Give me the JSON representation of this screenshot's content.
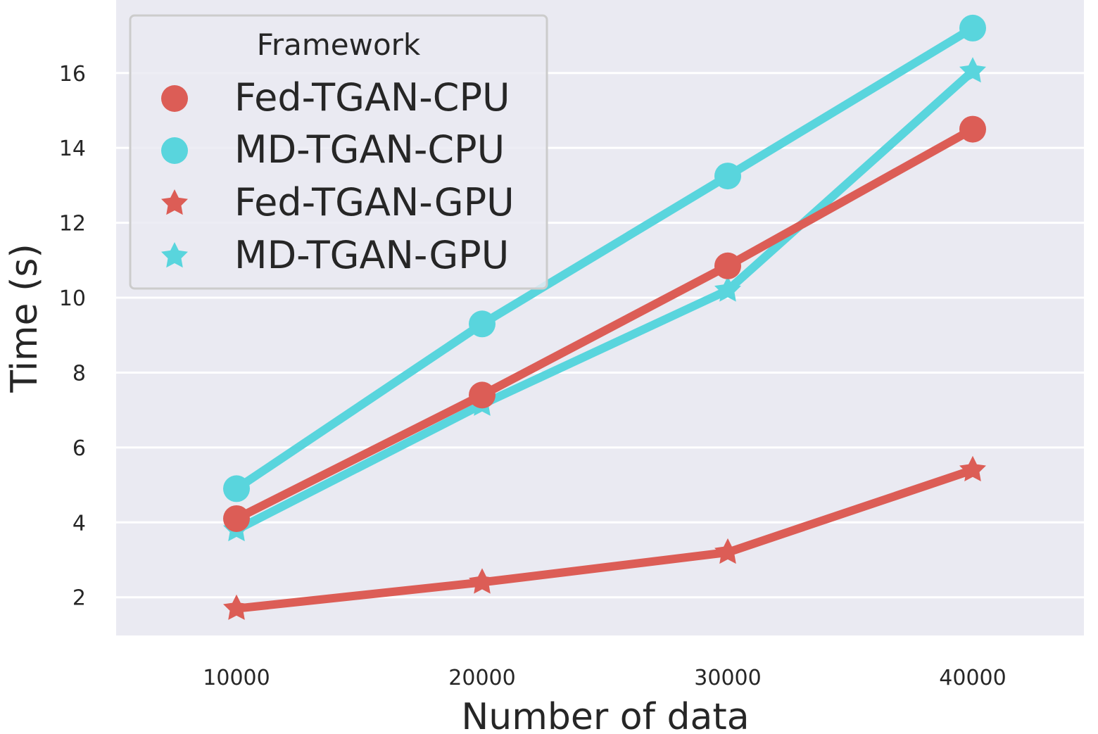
{
  "chart_data": {
    "type": "line",
    "title": "",
    "xlabel": "Number of data",
    "ylabel": "Time (s)",
    "x": [
      10000,
      20000,
      30000,
      40000
    ],
    "x_tick_labels": [
      "10000",
      "20000",
      "30000",
      "40000"
    ],
    "y_ticks": [
      2,
      4,
      6,
      8,
      10,
      12,
      14,
      16
    ],
    "y_tick_labels": [
      "2",
      "4",
      "6",
      "8",
      "10",
      "12",
      "14",
      "16"
    ],
    "ylim": [
      0.98,
      17.95
    ],
    "grid": true,
    "legend": {
      "title": "Framework",
      "location": "top-left"
    },
    "series": [
      {
        "name": "Fed-TGAN-CPU",
        "marker": "circle",
        "color": "#dc5d56",
        "values": [
          4.1,
          7.4,
          10.85,
          14.5
        ]
      },
      {
        "name": "MD-TGAN-CPU",
        "marker": "circle",
        "color": "#59d5dd",
        "values": [
          4.9,
          9.3,
          13.25,
          17.2
        ]
      },
      {
        "name": "Fed-TGAN-GPU",
        "marker": "star",
        "color": "#dc5d56",
        "values": [
          1.7,
          2.4,
          3.2,
          5.4
        ]
      },
      {
        "name": "MD-TGAN-GPU",
        "marker": "star",
        "color": "#59d5dd",
        "values": [
          3.8,
          7.15,
          10.2,
          16.05
        ]
      }
    ]
  }
}
